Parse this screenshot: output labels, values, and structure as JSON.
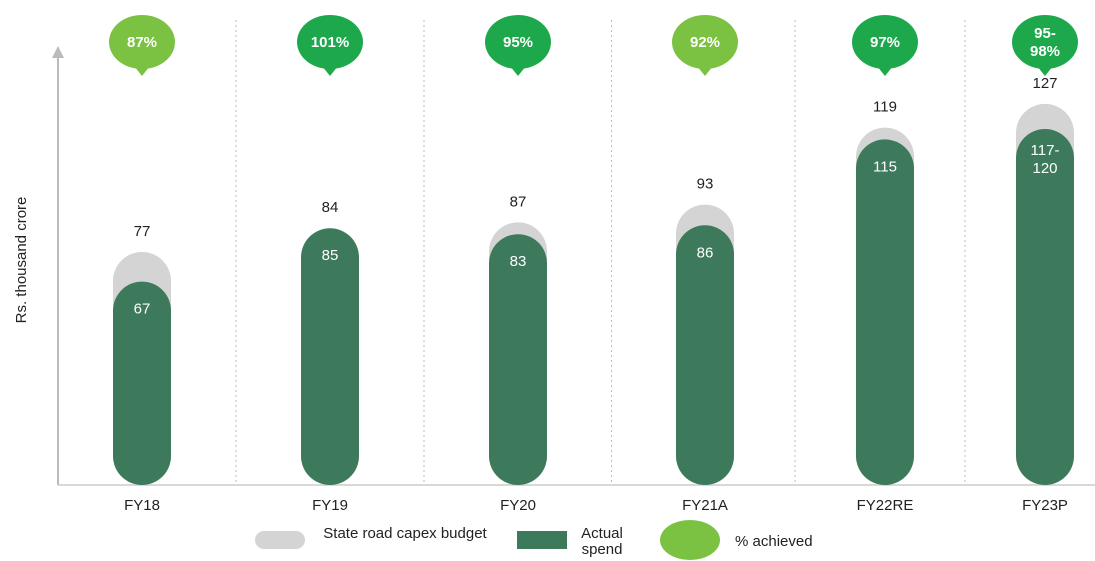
{
  "chart_data": {
    "type": "bar",
    "y_axis_label": "Rs. thousand crore",
    "categories": [
      "FY18",
      "FY19",
      "FY20",
      "FY21A",
      "FY22RE",
      "FY23P"
    ],
    "series": [
      {
        "name": "State road capex budget",
        "color": "#d4d4d4",
        "values": [
          77,
          84,
          87,
          93,
          119,
          127
        ]
      },
      {
        "name": "Actual spend",
        "color": "#3d7a5b",
        "values": [
          67,
          85,
          83,
          86,
          115,
          118.5
        ],
        "value_labels": [
          "67",
          "85",
          "83",
          "86",
          "115",
          "117-120"
        ]
      },
      {
        "name": "% achieved",
        "color": "#7cc242",
        "values": [
          87,
          101,
          95,
          92,
          97,
          96.5
        ],
        "value_labels": [
          "87%",
          "101%",
          "95%",
          "92%",
          "97%",
          "95-98%"
        ],
        "colors": [
          "#7cc242",
          "#1ea84c",
          "#1ea84c",
          "#7cc242",
          "#1ea84c",
          "#1ea84c"
        ]
      }
    ],
    "ylim": [
      0,
      130
    ]
  }
}
